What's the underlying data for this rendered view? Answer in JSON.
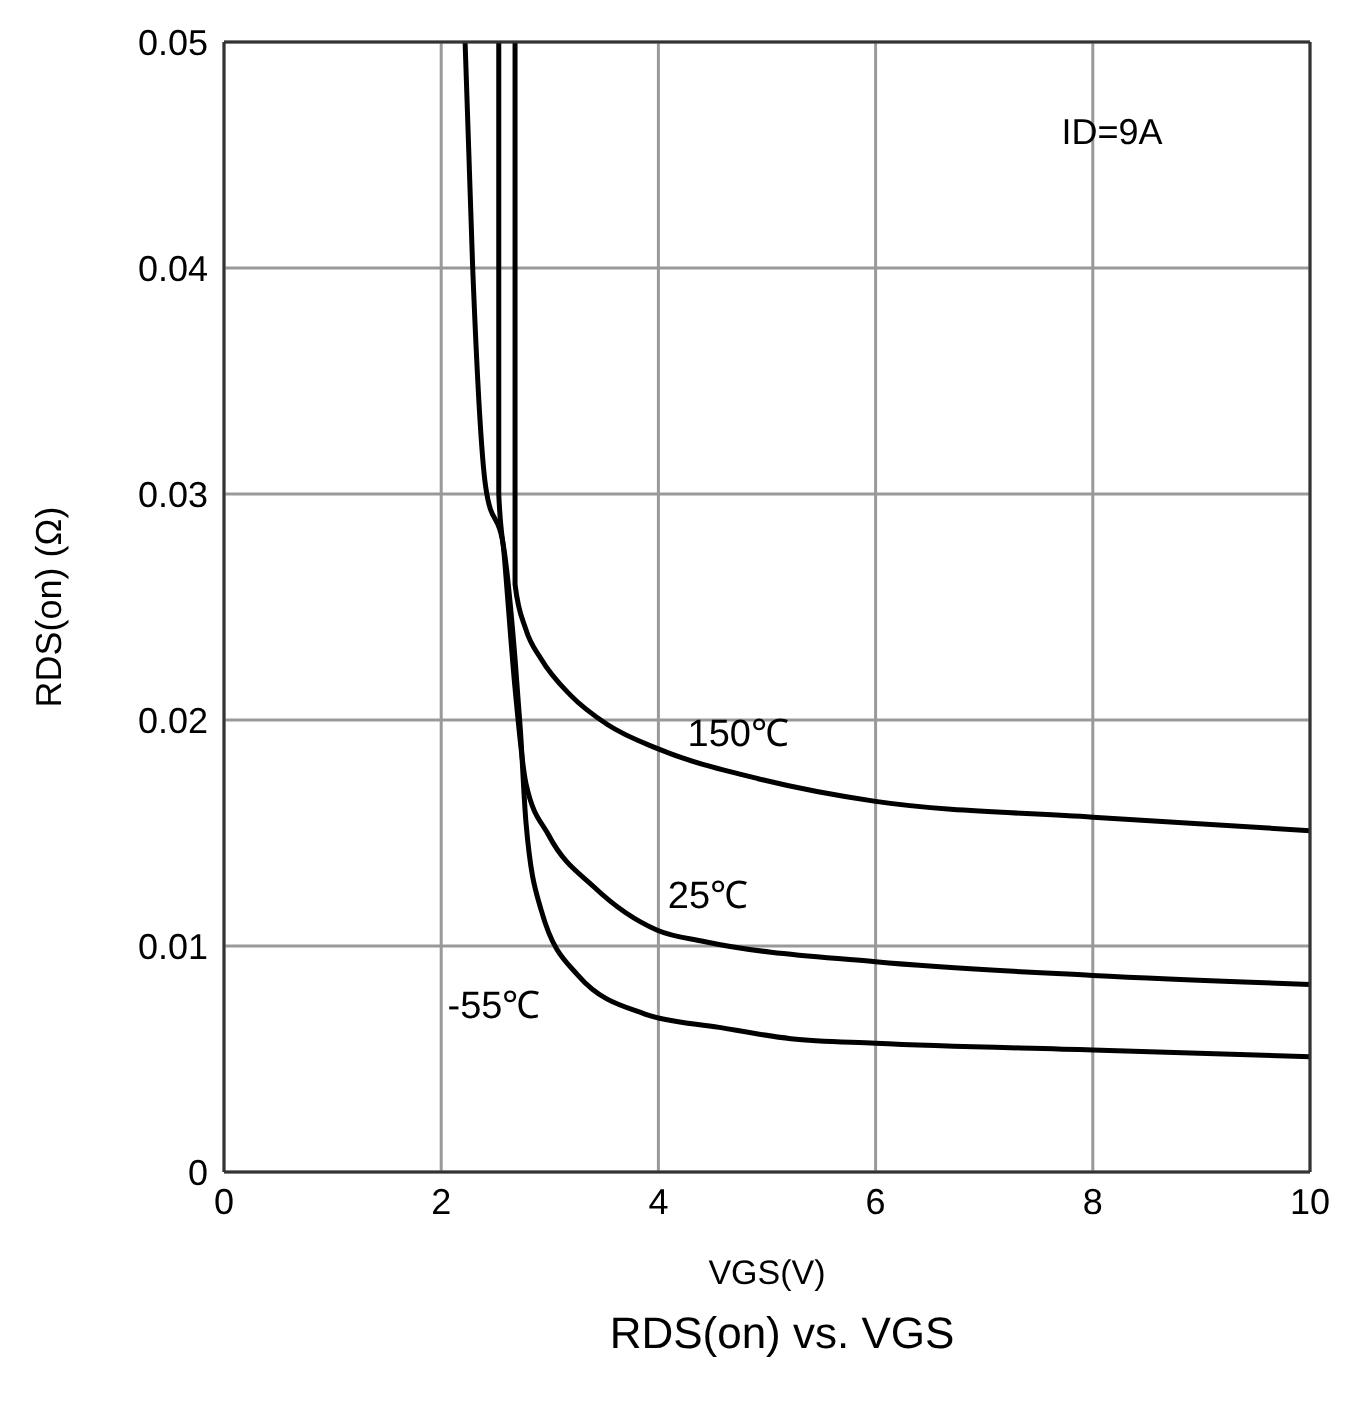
{
  "chart_data": {
    "type": "line",
    "title": "RDS(on) vs. VGS",
    "xlabel": "VGS(V)",
    "ylabel": "RDS(on) (Ω)",
    "xlim": [
      0,
      10
    ],
    "xticks": [
      0,
      2,
      4,
      6,
      8,
      10
    ],
    "ylim": [
      0,
      0.05
    ],
    "yticks": [
      0,
      0.01,
      0.02,
      0.03,
      0.04,
      0.05
    ],
    "grid": true,
    "legend": false,
    "marker": "none",
    "line_style": "solid",
    "series": [
      {
        "name": "150℃",
        "color": "#000000",
        "x": [
          2.68,
          2.68,
          2.78,
          2.92,
          3.19,
          3.53,
          4.01,
          4.92,
          6,
          8,
          10
        ],
        "values": [
          0.05,
          0.026,
          0.024,
          0.0227,
          0.0211,
          0.0198,
          0.0187,
          0.0174,
          0.0164,
          0.0157,
          0.0151
        ]
      },
      {
        "name": "25℃",
        "color": "#000000",
        "x": [
          2.53,
          2.53,
          2.58,
          2.68,
          2.78,
          2.99,
          3.41,
          3.99,
          4.42,
          6,
          8,
          10
        ],
        "values": [
          0.05,
          0.03,
          0.0273,
          0.0214,
          0.0172,
          0.0149,
          0.0126,
          0.0107,
          0.0102,
          0.0093,
          0.0087,
          0.0083
        ]
      },
      {
        "name": "-55℃",
        "color": "#000000",
        "x": [
          2.22,
          2.29,
          2.41,
          2.58,
          2.68,
          2.73,
          2.78,
          2.92,
          3.26,
          3.87,
          4.56,
          5.22,
          6,
          8,
          10
        ],
        "values": [
          0.05,
          0.04,
          0.0303,
          0.0275,
          0.0227,
          0.0195,
          0.0155,
          0.0116,
          0.0087,
          0.007,
          0.0064,
          0.0059,
          0.0057,
          0.0054,
          0.0051
        ]
      }
    ],
    "annotations": [
      "ID=9A"
    ]
  }
}
